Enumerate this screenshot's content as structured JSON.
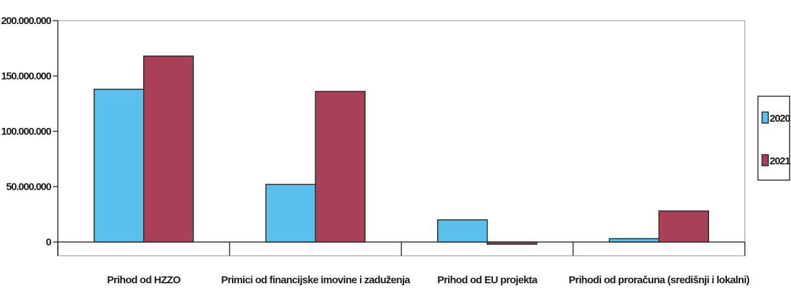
{
  "chart_data": {
    "type": "bar",
    "title": "",
    "xlabel": "",
    "ylabel": "",
    "categories": [
      "Prihod od HZZO",
      "Primici od financijske imovine i zaduženja",
      "Prihod od EU projekta",
      "Prihodi od proračuna (središnji i lokalni)"
    ],
    "series": [
      {
        "name": "2020",
        "color": "#5bc0eb",
        "values": [
          138000000,
          52000000,
          20000000,
          3000000
        ]
      },
      {
        "name": "2021",
        "color": "#a8405a",
        "values": [
          168000000,
          136000000,
          -2000000,
          28000000
        ]
      }
    ],
    "ylim": [
      0,
      200000000
    ],
    "yticks": [
      {
        "value": 0,
        "label": "0"
      },
      {
        "value": 50000000,
        "label": "50.000.000"
      },
      {
        "value": 100000000,
        "label": "100.000.000"
      },
      {
        "value": 150000000,
        "label": "150.000.000"
      },
      {
        "value": 200000000,
        "label": "200.000.000"
      }
    ],
    "legend_position": "right",
    "grid": false
  }
}
